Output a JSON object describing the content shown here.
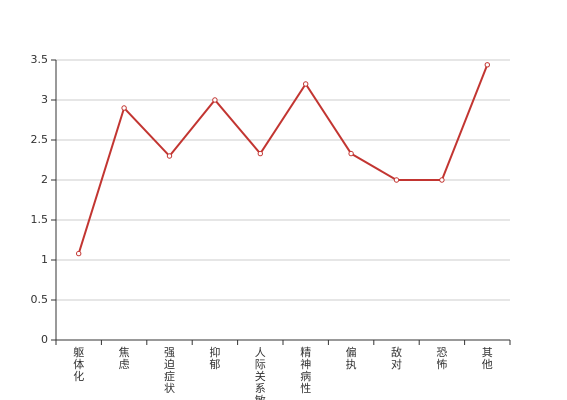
{
  "chart_data": {
    "type": "line",
    "categories": [
      "躯体化",
      "焦虑",
      "强迫症状",
      "抑郁",
      "人际关系敏感",
      "精神病性",
      "偏执",
      "敌对",
      "恐怖",
      "其他"
    ],
    "series": [
      {
        "color": "#c23531",
        "values": [
          1.08,
          2.9,
          2.3,
          3.0,
          2.33,
          3.2,
          2.33,
          2.0,
          2.0,
          3.44
        ]
      }
    ],
    "ylim": [
      0,
      3.5
    ],
    "yticks": [
      0,
      0.5,
      1,
      1.5,
      2,
      2.5,
      3,
      3.5
    ],
    "grid": true
  }
}
